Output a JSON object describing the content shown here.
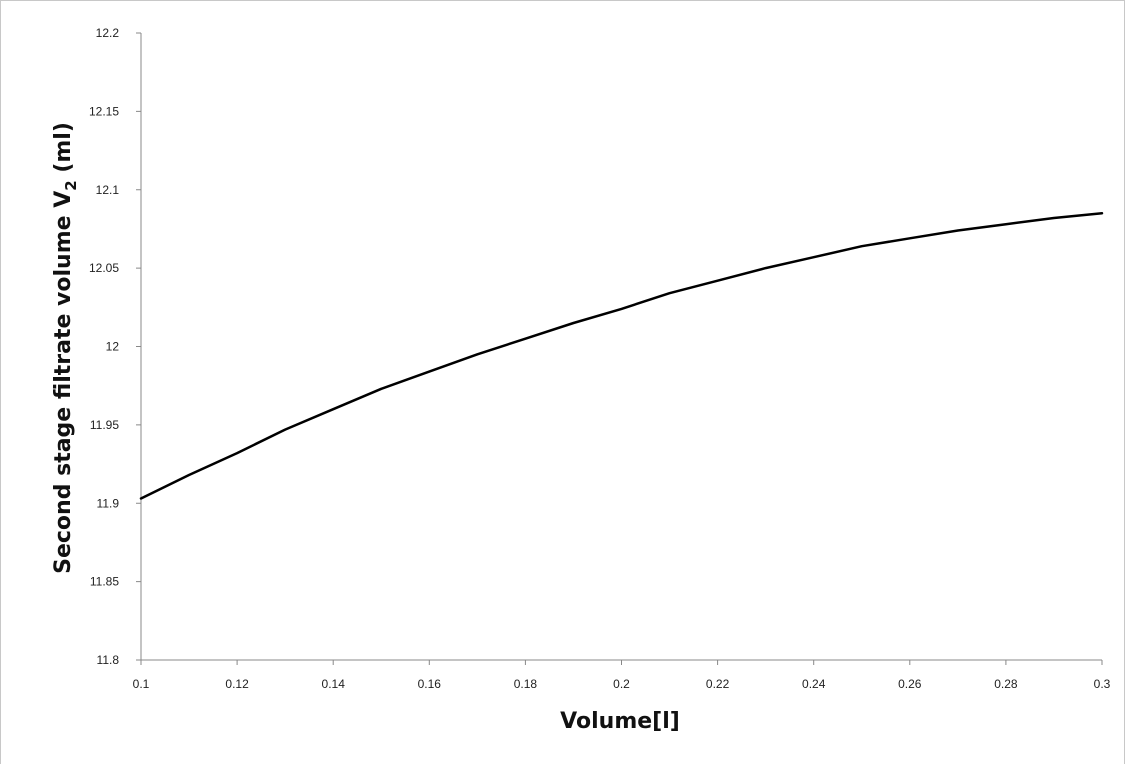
{
  "chart_data": {
    "type": "line",
    "title": "",
    "xlabel": "Volume[l]",
    "ylabel": "Second stage filtrate volume V",
    "ylabel_subscript": "2",
    "ylabel_unit": " (ml)",
    "xlim": [
      0.1,
      0.3
    ],
    "ylim": [
      11.8,
      12.2
    ],
    "x_ticks": [
      "0.1",
      "0.12",
      "0.14",
      "0.16",
      "0.18",
      "0.2",
      "0.22",
      "0.24",
      "0.26",
      "0.28",
      "0.3"
    ],
    "y_ticks": [
      "11.8",
      "11.85",
      "11.9",
      "11.95",
      "12",
      "12.05",
      "12.1",
      "12.15",
      "12.2"
    ],
    "grid": false,
    "legend": "none",
    "series": [
      {
        "color": "#000000",
        "x": [
          0.1,
          0.11,
          0.12,
          0.13,
          0.14,
          0.15,
          0.16,
          0.17,
          0.18,
          0.19,
          0.2,
          0.21,
          0.22,
          0.23,
          0.24,
          0.25,
          0.26,
          0.27,
          0.28,
          0.29,
          0.3
        ],
        "y": [
          11.903,
          11.918,
          11.932,
          11.947,
          11.96,
          11.973,
          11.984,
          11.995,
          12.005,
          12.015,
          12.024,
          12.034,
          12.042,
          12.05,
          12.057,
          12.064,
          12.069,
          12.074,
          12.078,
          12.082,
          12.085
        ]
      }
    ]
  }
}
